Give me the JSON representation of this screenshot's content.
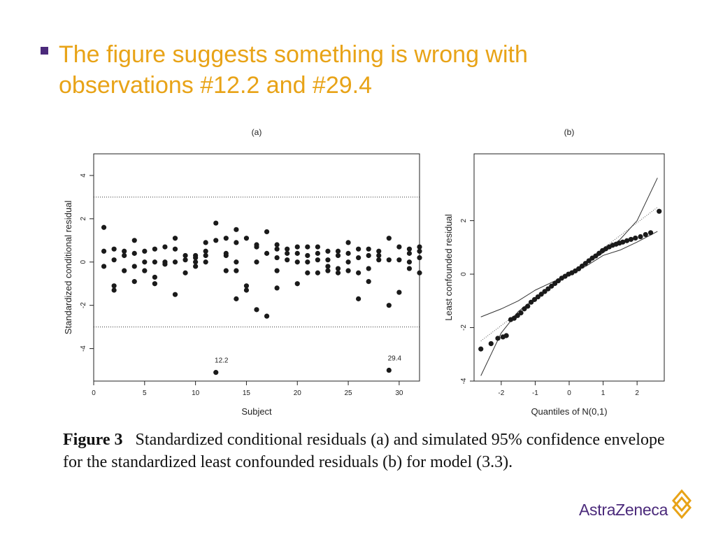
{
  "slide": {
    "bullet_text": "The figure suggests something is wrong with observations #12.2 and #29.4",
    "caption_label": "Figure 3",
    "caption_text": "Standardized conditional residuals (a) and simulated 95% confidence envelope for the standardized least confounded residuals (b) for model (3.3).",
    "logo_text": "AstraZeneca"
  },
  "colors": {
    "bullet_text": "#e8a317",
    "bullet_marker": "#4b2a7b",
    "logo": "#4b2a7b",
    "logo_mark": "#e8a317"
  },
  "chart_data": [
    {
      "type": "scatter",
      "panel_label": "(a)",
      "xlabel": "Subject",
      "ylabel": "Standardized conditional residual",
      "xlim": [
        0,
        32
      ],
      "ylim": [
        -5.5,
        5
      ],
      "xticks": [
        0,
        5,
        10,
        15,
        20,
        25,
        30
      ],
      "yticks": [
        -4,
        -2,
        0,
        2,
        4
      ],
      "reference_lines": [
        3,
        -3
      ],
      "annotations": [
        {
          "text": "12.2",
          "x": 12,
          "y": -5.1
        },
        {
          "text": "29.4",
          "x": 29,
          "y": -5.0
        }
      ],
      "points": [
        [
          1,
          1.6
        ],
        [
          1,
          0.5
        ],
        [
          1,
          -0.2
        ],
        [
          2,
          0.6
        ],
        [
          2,
          0.1
        ],
        [
          2,
          -1.1
        ],
        [
          2,
          -1.3
        ],
        [
          3,
          0.5
        ],
        [
          3,
          0.3
        ],
        [
          3,
          -0.4
        ],
        [
          4,
          1.0
        ],
        [
          4,
          0.4
        ],
        [
          4,
          -0.2
        ],
        [
          4,
          -0.9
        ],
        [
          5,
          0.5
        ],
        [
          5,
          0.0
        ],
        [
          5,
          -0.4
        ],
        [
          6,
          0.6
        ],
        [
          6,
          0.0
        ],
        [
          6,
          -0.7
        ],
        [
          6,
          -1.0
        ],
        [
          7,
          0.7
        ],
        [
          7,
          0.0
        ],
        [
          7,
          -0.1
        ],
        [
          8,
          1.1
        ],
        [
          8,
          0.6
        ],
        [
          8,
          0.0
        ],
        [
          8,
          -1.5
        ],
        [
          9,
          0.3
        ],
        [
          9,
          0.1
        ],
        [
          9,
          -0.5
        ],
        [
          10,
          0.3
        ],
        [
          10,
          0.2
        ],
        [
          10,
          0.0
        ],
        [
          10,
          -0.2
        ],
        [
          11,
          0.9
        ],
        [
          11,
          0.5
        ],
        [
          11,
          0.3
        ],
        [
          11,
          0.0
        ],
        [
          12,
          1.8
        ],
        [
          12,
          1.0
        ],
        [
          12,
          -5.1
        ],
        [
          13,
          1.1
        ],
        [
          13,
          0.4
        ],
        [
          13,
          0.3
        ],
        [
          13,
          -0.4
        ],
        [
          14,
          1.5
        ],
        [
          14,
          0.9
        ],
        [
          14,
          0.0
        ],
        [
          14,
          -0.4
        ],
        [
          14,
          -1.7
        ],
        [
          15,
          1.1
        ],
        [
          15,
          -1.1
        ],
        [
          15,
          -1.3
        ],
        [
          16,
          0.8
        ],
        [
          16,
          0.7
        ],
        [
          16,
          0.0
        ],
        [
          16,
          -2.2
        ],
        [
          17,
          1.4
        ],
        [
          17,
          0.4
        ],
        [
          17,
          -2.5
        ],
        [
          18,
          0.8
        ],
        [
          18,
          0.6
        ],
        [
          18,
          0.2
        ],
        [
          18,
          -0.4
        ],
        [
          18,
          -1.2
        ],
        [
          19,
          0.6
        ],
        [
          19,
          0.4
        ],
        [
          19,
          0.1
        ],
        [
          20,
          0.7
        ],
        [
          20,
          0.4
        ],
        [
          20,
          0.0
        ],
        [
          20,
          -1.0
        ],
        [
          21,
          0.7
        ],
        [
          21,
          0.3
        ],
        [
          21,
          0.0
        ],
        [
          21,
          -0.5
        ],
        [
          22,
          0.7
        ],
        [
          22,
          0.4
        ],
        [
          22,
          0.1
        ],
        [
          22,
          -0.5
        ],
        [
          23,
          0.5
        ],
        [
          23,
          0.1
        ],
        [
          23,
          -0.2
        ],
        [
          23,
          -0.4
        ],
        [
          24,
          0.5
        ],
        [
          24,
          0.3
        ],
        [
          24,
          -0.3
        ],
        [
          24,
          -0.5
        ],
        [
          25,
          0.9
        ],
        [
          25,
          0.4
        ],
        [
          25,
          0.0
        ],
        [
          25,
          -0.4
        ],
        [
          26,
          0.6
        ],
        [
          26,
          0.2
        ],
        [
          26,
          -0.5
        ],
        [
          26,
          -1.7
        ],
        [
          27,
          0.6
        ],
        [
          27,
          0.3
        ],
        [
          27,
          -0.3
        ],
        [
          27,
          -0.9
        ],
        [
          28,
          0.5
        ],
        [
          28,
          0.3
        ],
        [
          28,
          0.1
        ],
        [
          29,
          1.1
        ],
        [
          29,
          0.1
        ],
        [
          29,
          -2.0
        ],
        [
          29,
          -5.0
        ],
        [
          30,
          0.7
        ],
        [
          30,
          0.1
        ],
        [
          30,
          -1.4
        ],
        [
          31,
          0.6
        ],
        [
          31,
          0.4
        ],
        [
          31,
          0.0
        ],
        [
          31,
          -0.3
        ],
        [
          32,
          0.7
        ],
        [
          32,
          0.5
        ],
        [
          32,
          0.2
        ],
        [
          32,
          -0.5
        ]
      ]
    },
    {
      "type": "scatter",
      "panel_label": "(b)",
      "xlabel": "Quantiles of N(0,1)",
      "ylabel": "Least confounded residual",
      "xlim": [
        -2.8,
        2.8
      ],
      "ylim": [
        -4,
        4.5
      ],
      "xticks": [
        -2,
        -1,
        0,
        1,
        2
      ],
      "yticks": [
        -4,
        -2,
        0,
        2
      ],
      "reference_line": {
        "type": "dotted",
        "from": [
          -2.6,
          -2.5
        ],
        "to": [
          2.6,
          2.5
        ]
      },
      "envelope_upper": [
        [
          -2.6,
          -1.6
        ],
        [
          -2.0,
          -1.3
        ],
        [
          -1.5,
          -1.0
        ],
        [
          -1.0,
          -0.6
        ],
        [
          -0.5,
          -0.3
        ],
        [
          0,
          0.0
        ],
        [
          0.5,
          0.4
        ],
        [
          1.0,
          0.8
        ],
        [
          1.5,
          1.3
        ],
        [
          2.0,
          2.0
        ],
        [
          2.6,
          3.6
        ]
      ],
      "envelope_lower": [
        [
          -2.6,
          -3.8
        ],
        [
          -2.0,
          -2.2
        ],
        [
          -1.5,
          -1.4
        ],
        [
          -1.0,
          -0.9
        ],
        [
          -0.5,
          -0.4
        ],
        [
          0,
          0.0
        ],
        [
          0.5,
          0.3
        ],
        [
          1.0,
          0.7
        ],
        [
          1.5,
          0.9
        ],
        [
          2.0,
          1.2
        ],
        [
          2.6,
          1.6
        ]
      ],
      "points": [
        [
          -2.6,
          -2.8
        ],
        [
          -2.3,
          -2.6
        ],
        [
          -2.1,
          -2.4
        ],
        [
          -1.95,
          -2.35
        ],
        [
          -1.85,
          -2.3
        ],
        [
          -1.72,
          -1.7
        ],
        [
          -1.62,
          -1.65
        ],
        [
          -1.52,
          -1.55
        ],
        [
          -1.42,
          -1.45
        ],
        [
          -1.32,
          -1.3
        ],
        [
          -1.22,
          -1.2
        ],
        [
          -1.12,
          -1.05
        ],
        [
          -1.02,
          -0.95
        ],
        [
          -0.92,
          -0.85
        ],
        [
          -0.82,
          -0.75
        ],
        [
          -0.72,
          -0.65
        ],
        [
          -0.62,
          -0.55
        ],
        [
          -0.52,
          -0.45
        ],
        [
          -0.42,
          -0.35
        ],
        [
          -0.32,
          -0.25
        ],
        [
          -0.22,
          -0.15
        ],
        [
          -0.12,
          -0.08
        ],
        [
          -0.02,
          0.0
        ],
        [
          0.08,
          0.05
        ],
        [
          0.18,
          0.12
        ],
        [
          0.28,
          0.2
        ],
        [
          0.38,
          0.3
        ],
        [
          0.48,
          0.4
        ],
        [
          0.58,
          0.5
        ],
        [
          0.68,
          0.6
        ],
        [
          0.78,
          0.68
        ],
        [
          0.88,
          0.78
        ],
        [
          0.98,
          0.88
        ],
        [
          1.08,
          0.95
        ],
        [
          1.18,
          1.02
        ],
        [
          1.28,
          1.08
        ],
        [
          1.38,
          1.12
        ],
        [
          1.48,
          1.16
        ],
        [
          1.58,
          1.2
        ],
        [
          1.7,
          1.25
        ],
        [
          1.82,
          1.3
        ],
        [
          1.95,
          1.35
        ],
        [
          2.1,
          1.4
        ],
        [
          2.25,
          1.48
        ],
        [
          2.4,
          1.55
        ],
        [
          2.65,
          2.35
        ]
      ]
    }
  ]
}
